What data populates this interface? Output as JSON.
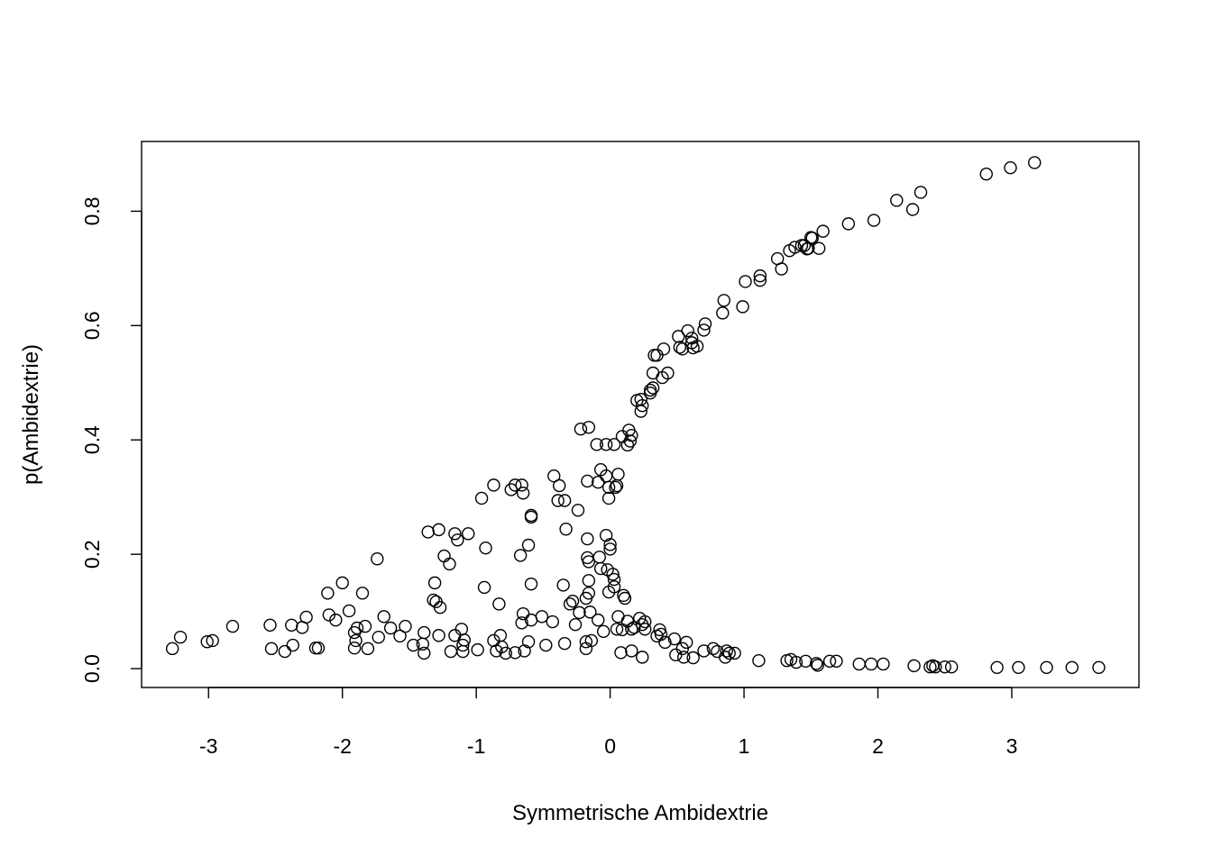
{
  "chart_data": {
    "type": "scatter",
    "title": "",
    "xlabel": "Symmetrische Ambidextrie",
    "ylabel": "p(Ambidextrie)",
    "xlim": [
      -3.5,
      3.95
    ],
    "ylim": [
      -0.033,
      0.922
    ],
    "xticks": [
      -3,
      -2,
      -1,
      0,
      1,
      2,
      3
    ],
    "xtick_labels": [
      "-3",
      "-2",
      "-1",
      "0",
      "1",
      "2",
      "3"
    ],
    "yticks": [
      0,
      0.2,
      0.4,
      0.6,
      0.8
    ],
    "ytick_labels": [
      "0.0",
      "0.2",
      "0.4",
      "0.6",
      "0.8"
    ],
    "grid": false,
    "marker": "open-circle",
    "point_color": "#000000",
    "points": [
      [
        -3.27,
        0.035
      ],
      [
        -3.21,
        0.055
      ],
      [
        -3.01,
        0.047
      ],
      [
        -2.97,
        0.049
      ],
      [
        -2.82,
        0.074
      ],
      [
        -2.54,
        0.076
      ],
      [
        -2.53,
        0.035
      ],
      [
        -2.43,
        0.03
      ],
      [
        -2.38,
        0.076
      ],
      [
        -2.37,
        0.041
      ],
      [
        -2.3,
        0.072
      ],
      [
        -2.27,
        0.09
      ],
      [
        -2.2,
        0.036
      ],
      [
        -2.18,
        0.036
      ],
      [
        -2.11,
        0.132
      ],
      [
        -2.1,
        0.094
      ],
      [
        -2.05,
        0.085
      ],
      [
        -2.0,
        0.15
      ],
      [
        -1.95,
        0.101
      ],
      [
        -1.91,
        0.036
      ],
      [
        -1.91,
        0.063
      ],
      [
        -1.9,
        0.049
      ],
      [
        -1.89,
        0.071
      ],
      [
        -1.85,
        0.132
      ],
      [
        -1.83,
        0.074
      ],
      [
        -1.81,
        0.035
      ],
      [
        -1.74,
        0.192
      ],
      [
        -1.73,
        0.055
      ],
      [
        -1.69,
        0.091
      ],
      [
        -1.64,
        0.071
      ],
      [
        -1.57,
        0.057
      ],
      [
        -1.53,
        0.074
      ],
      [
        -1.47,
        0.041
      ],
      [
        -1.4,
        0.043
      ],
      [
        -1.39,
        0.063
      ],
      [
        -1.39,
        0.027
      ],
      [
        -1.36,
        0.239
      ],
      [
        -1.31,
        0.15
      ],
      [
        -1.32,
        0.12
      ],
      [
        -1.3,
        0.117
      ],
      [
        -1.28,
        0.243
      ],
      [
        -1.28,
        0.058
      ],
      [
        -1.27,
        0.107
      ],
      [
        -1.24,
        0.197
      ],
      [
        -1.2,
        0.183
      ],
      [
        -1.19,
        0.03
      ],
      [
        -1.16,
        0.236
      ],
      [
        -1.14,
        0.225
      ],
      [
        -1.16,
        0.058
      ],
      [
        -1.11,
        0.069
      ],
      [
        -1.1,
        0.041
      ],
      [
        -1.1,
        0.03
      ],
      [
        -1.09,
        0.05
      ],
      [
        -1.06,
        0.236
      ],
      [
        -0.99,
        0.033
      ],
      [
        -0.96,
        0.298
      ],
      [
        -0.93,
        0.211
      ],
      [
        -0.94,
        0.142
      ],
      [
        -0.87,
        0.321
      ],
      [
        -0.87,
        0.049
      ],
      [
        -0.85,
        0.031
      ],
      [
        -0.83,
        0.113
      ],
      [
        -0.82,
        0.058
      ],
      [
        -0.81,
        0.038
      ],
      [
        -0.78,
        0.027
      ],
      [
        -0.74,
        0.313
      ],
      [
        -0.71,
        0.321
      ],
      [
        -0.71,
        0.028
      ],
      [
        -0.67,
        0.198
      ],
      [
        -0.66,
        0.321
      ],
      [
        -0.65,
        0.307
      ],
      [
        -0.65,
        0.096
      ],
      [
        -0.66,
        0.08
      ],
      [
        -0.64,
        0.031
      ],
      [
        -0.61,
        0.216
      ],
      [
        -0.61,
        0.047
      ],
      [
        -0.59,
        0.268
      ],
      [
        -0.59,
        0.265
      ],
      [
        -0.59,
        0.148
      ],
      [
        -0.59,
        0.085
      ],
      [
        -0.51,
        0.091
      ],
      [
        -0.48,
        0.041
      ],
      [
        -0.43,
        0.082
      ],
      [
        -0.42,
        0.337
      ],
      [
        -0.39,
        0.294
      ],
      [
        -0.38,
        0.32
      ],
      [
        -0.35,
        0.146
      ],
      [
        -0.34,
        0.044
      ],
      [
        -0.34,
        0.294
      ],
      [
        -0.33,
        0.244
      ],
      [
        -0.3,
        0.113
      ],
      [
        -0.28,
        0.118
      ],
      [
        -0.26,
        0.077
      ],
      [
        -0.24,
        0.277
      ],
      [
        -0.23,
        0.098
      ],
      [
        -0.22,
        0.419
      ],
      [
        -0.18,
        0.123
      ],
      [
        -0.18,
        0.047
      ],
      [
        -0.18,
        0.035
      ],
      [
        -0.17,
        0.328
      ],
      [
        -0.17,
        0.227
      ],
      [
        -0.17,
        0.194
      ],
      [
        -0.16,
        0.132
      ],
      [
        -0.16,
        0.154
      ],
      [
        -0.16,
        0.422
      ],
      [
        -0.16,
        0.187
      ],
      [
        -0.15,
        0.099
      ],
      [
        -0.14,
        0.049
      ],
      [
        -0.1,
        0.392
      ],
      [
        -0.09,
        0.085
      ],
      [
        -0.09,
        0.326
      ],
      [
        -0.07,
        0.348
      ],
      [
        -0.08,
        0.195
      ],
      [
        -0.07,
        0.175
      ],
      [
        -0.05,
        0.065
      ],
      [
        -0.03,
        0.392
      ],
      [
        -0.03,
        0.337
      ],
      [
        -0.03,
        0.233
      ],
      [
        -0.02,
        0.173
      ],
      [
        -0.01,
        0.134
      ],
      [
        -0.01,
        0.317
      ],
      [
        -0.01,
        0.298
      ],
      [
        0.0,
        0.217
      ],
      [
        0.0,
        0.209
      ],
      [
        0.02,
        0.165
      ],
      [
        0.03,
        0.156
      ],
      [
        0.03,
        0.143
      ],
      [
        0.03,
        0.392
      ],
      [
        0.04,
        0.317
      ],
      [
        0.05,
        0.069
      ],
      [
        0.05,
        0.32
      ],
      [
        0.06,
        0.34
      ],
      [
        0.06,
        0.091
      ],
      [
        0.08,
        0.028
      ],
      [
        0.09,
        0.068
      ],
      [
        0.09,
        0.406
      ],
      [
        0.1,
        0.128
      ],
      [
        0.11,
        0.123
      ],
      [
        0.13,
        0.391
      ],
      [
        0.13,
        0.083
      ],
      [
        0.14,
        0.417
      ],
      [
        0.15,
        0.398
      ],
      [
        0.16,
        0.408
      ],
      [
        0.16,
        0.069
      ],
      [
        0.16,
        0.031
      ],
      [
        0.18,
        0.072
      ],
      [
        0.2,
        0.469
      ],
      [
        0.22,
        0.088
      ],
      [
        0.23,
        0.471
      ],
      [
        0.23,
        0.45
      ],
      [
        0.24,
        0.02
      ],
      [
        0.24,
        0.46
      ],
      [
        0.24,
        0.077
      ],
      [
        0.26,
        0.082
      ],
      [
        0.26,
        0.069
      ],
      [
        0.3,
        0.482
      ],
      [
        0.3,
        0.487
      ],
      [
        0.32,
        0.491
      ],
      [
        0.32,
        0.517
      ],
      [
        0.33,
        0.548
      ],
      [
        0.35,
        0.548
      ],
      [
        0.35,
        0.057
      ],
      [
        0.37,
        0.068
      ],
      [
        0.38,
        0.06
      ],
      [
        0.39,
        0.509
      ],
      [
        0.4,
        0.559
      ],
      [
        0.41,
        0.046
      ],
      [
        0.43,
        0.517
      ],
      [
        0.48,
        0.052
      ],
      [
        0.49,
        0.024
      ],
      [
        0.51,
        0.581
      ],
      [
        0.52,
        0.562
      ],
      [
        0.54,
        0.559
      ],
      [
        0.54,
        0.035
      ],
      [
        0.55,
        0.02
      ],
      [
        0.57,
        0.046
      ],
      [
        0.58,
        0.591
      ],
      [
        0.61,
        0.57
      ],
      [
        0.61,
        0.578
      ],
      [
        0.62,
        0.561
      ],
      [
        0.62,
        0.019
      ],
      [
        0.65,
        0.564
      ],
      [
        0.7,
        0.031
      ],
      [
        0.7,
        0.592
      ],
      [
        0.71,
        0.603
      ],
      [
        0.77,
        0.035
      ],
      [
        0.8,
        0.03
      ],
      [
        0.84,
        0.622
      ],
      [
        0.85,
        0.644
      ],
      [
        0.86,
        0.02
      ],
      [
        0.87,
        0.031
      ],
      [
        0.89,
        0.027
      ],
      [
        0.93,
        0.027
      ],
      [
        0.99,
        0.633
      ],
      [
        1.01,
        0.677
      ],
      [
        1.11,
        0.014
      ],
      [
        1.12,
        0.679
      ],
      [
        1.12,
        0.687
      ],
      [
        1.25,
        0.717
      ],
      [
        1.28,
        0.699
      ],
      [
        1.32,
        0.014
      ],
      [
        1.34,
        0.731
      ],
      [
        1.35,
        0.016
      ],
      [
        1.38,
        0.737
      ],
      [
        1.39,
        0.011
      ],
      [
        1.43,
        0.74
      ],
      [
        1.45,
        0.74
      ],
      [
        1.46,
        0.013
      ],
      [
        1.47,
        0.734
      ],
      [
        1.48,
        0.735
      ],
      [
        1.5,
        0.754
      ],
      [
        1.51,
        0.753
      ],
      [
        1.54,
        0.009
      ],
      [
        1.55,
        0.006
      ],
      [
        1.56,
        0.735
      ],
      [
        1.59,
        0.765
      ],
      [
        1.64,
        0.013
      ],
      [
        1.69,
        0.013
      ],
      [
        1.78,
        0.778
      ],
      [
        1.86,
        0.008
      ],
      [
        1.95,
        0.008
      ],
      [
        1.97,
        0.784
      ],
      [
        2.04,
        0.008
      ],
      [
        2.14,
        0.819
      ],
      [
        2.26,
        0.803
      ],
      [
        2.27,
        0.005
      ],
      [
        2.32,
        0.833
      ],
      [
        2.39,
        0.003
      ],
      [
        2.41,
        0.005
      ],
      [
        2.43,
        0.003
      ],
      [
        2.5,
        0.003
      ],
      [
        2.55,
        0.003
      ],
      [
        2.81,
        0.865
      ],
      [
        2.89,
        0.002
      ],
      [
        2.99,
        0.876
      ],
      [
        3.05,
        0.002
      ],
      [
        3.17,
        0.885
      ],
      [
        3.26,
        0.002
      ],
      [
        3.45,
        0.002
      ],
      [
        3.65,
        0.002
      ]
    ]
  }
}
